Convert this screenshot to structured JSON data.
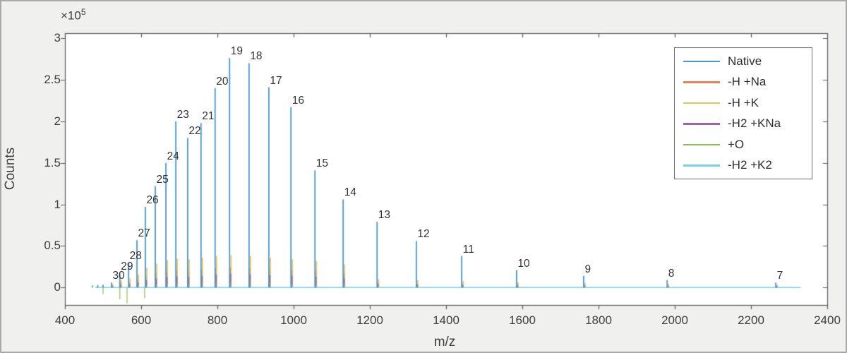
{
  "figure": {
    "background": "#f0f0ee",
    "border_color": "#a9a9a9",
    "plot_background": "#ffffff",
    "axis_color": "#5a5a5a",
    "text_color": "#3e3e3e"
  },
  "chart_data": {
    "type": "stem",
    "subtype": "native-mass-spectrum-charge-state-distribution",
    "title": "",
    "xlabel": "m/z",
    "ylabel": "Counts",
    "y_multiplier": "×10",
    "y_exponent": "5",
    "xlim": [
      400,
      2400
    ],
    "ylim": [
      -21000,
      306000
    ],
    "grid": false,
    "xticks": {
      "values": [
        400,
        600,
        800,
        1000,
        1200,
        1400,
        1600,
        1800,
        2000,
        2200,
        2400
      ],
      "labels": [
        "400",
        "600",
        "800",
        "1000",
        "1200",
        "1400",
        "1600",
        "1800",
        "2000",
        "2200",
        "2400"
      ]
    },
    "yticks": {
      "values": [
        0,
        50000,
        100000,
        150000,
        200000,
        250000,
        300000
      ],
      "labels": [
        "0",
        "0.5",
        "1",
        "1.5",
        "2",
        "2.5",
        "3"
      ]
    },
    "legend": {
      "position": "top-right",
      "entries": [
        {
          "key": "native",
          "label": "Native",
          "color": "#4596d3"
        },
        {
          "key": "na",
          "label": "-H +Na",
          "color": "#e4825c"
        },
        {
          "key": "k",
          "label": "-H +K",
          "color": "#eec156"
        },
        {
          "key": "kna",
          "label": "-H2 +KNa",
          "color": "#a05fa8"
        },
        {
          "key": "o",
          "label": "+O",
          "color": "#8fbb55"
        },
        {
          "key": "k2",
          "label": "-H2 +K2",
          "color": "#79d0f2"
        }
      ]
    },
    "baseline": {
      "series_key": "k2",
      "from_mz": 480,
      "to_mz": 2330,
      "value": 0
    },
    "peaks": [
      {
        "label": "",
        "mz": 472,
        "native": 2500,
        "na": 0,
        "k": 0,
        "kna": 0,
        "o": 0,
        "k2": 0
      },
      {
        "label": "",
        "mz": 486,
        "native": 3000,
        "na": 0,
        "k": 0,
        "kna": 0,
        "o": 0,
        "k2": 0
      },
      {
        "label": "",
        "mz": 500,
        "native": 3500,
        "na": 0,
        "k": 0,
        "kna": 0,
        "o": 0,
        "k2": 0
      },
      {
        "label": "30",
        "mz": 522,
        "native": 6000,
        "na": 2800,
        "k": 4200,
        "kna": 1800,
        "o": 900,
        "k2": 400
      },
      {
        "label": "29",
        "mz": 544,
        "native": 17000,
        "na": 5500,
        "k": 8500,
        "kna": 3200,
        "o": 1400,
        "k2": 600
      },
      {
        "label": "28",
        "mz": 567,
        "native": 30000,
        "na": 7000,
        "k": 11000,
        "kna": 4200,
        "o": 1800,
        "k2": 800
      },
      {
        "label": "27",
        "mz": 589,
        "native": 57000,
        "na": 9500,
        "k": 16000,
        "kna": 6000,
        "o": 2400,
        "k2": 1000
      },
      {
        "label": "26",
        "mz": 611,
        "native": 97000,
        "na": 14000,
        "k": 24000,
        "kna": 9000,
        "o": 3400,
        "k2": 1300
      },
      {
        "label": "25",
        "mz": 637,
        "native": 122000,
        "na": 17000,
        "k": 29000,
        "kna": 11000,
        "o": 4200,
        "k2": 1600
      },
      {
        "label": "24",
        "mz": 665,
        "native": 150000,
        "na": 19000,
        "k": 33000,
        "kna": 12500,
        "o": 4800,
        "k2": 1800
      },
      {
        "label": "23",
        "mz": 691,
        "native": 200000,
        "na": 21000,
        "k": 35000,
        "kna": 13500,
        "o": 5200,
        "k2": 2000
      },
      {
        "label": "22",
        "mz": 722,
        "native": 180000,
        "na": 20000,
        "k": 34000,
        "kna": 13000,
        "o": 5200,
        "k2": 2000
      },
      {
        "label": "21",
        "mz": 757,
        "native": 198000,
        "na": 21500,
        "k": 36000,
        "kna": 14000,
        "o": 5600,
        "k2": 2100
      },
      {
        "label": "20",
        "mz": 794,
        "native": 240000,
        "na": 23000,
        "k": 38000,
        "kna": 15500,
        "o": 6000,
        "k2": 2200
      },
      {
        "label": "19",
        "mz": 832,
        "native": 276000,
        "na": 24000,
        "k": 39000,
        "kna": 16500,
        "o": 6400,
        "k2": 2400
      },
      {
        "label": "18",
        "mz": 883,
        "native": 270000,
        "na": 23500,
        "k": 38000,
        "kna": 16000,
        "o": 6400,
        "k2": 2400
      },
      {
        "label": "17",
        "mz": 935,
        "native": 241000,
        "na": 22500,
        "k": 36000,
        "kna": 15000,
        "o": 6000,
        "k2": 2200
      },
      {
        "label": "16",
        "mz": 993,
        "native": 217000,
        "na": 21500,
        "k": 34000,
        "kna": 14000,
        "o": 5600,
        "k2": 2000
      },
      {
        "label": "15",
        "mz": 1056,
        "native": 141000,
        "na": 20000,
        "k": 32000,
        "kna": 13000,
        "o": 5200,
        "k2": 1900
      },
      {
        "label": "14",
        "mz": 1130,
        "native": 106000,
        "na": 17500,
        "k": 28000,
        "kna": 11000,
        "o": 4400,
        "k2": 1600
      },
      {
        "label": "13",
        "mz": 1219,
        "native": 79000,
        "na": 6000,
        "k": 10000,
        "kna": 4000,
        "o": 1800,
        "k2": 800
      },
      {
        "label": "12",
        "mz": 1322,
        "native": 56000,
        "na": 5200,
        "k": 9000,
        "kna": 3600,
        "o": 1600,
        "k2": 700
      },
      {
        "label": "11",
        "mz": 1441,
        "native": 38000,
        "na": 4600,
        "k": 8000,
        "kna": 3200,
        "o": 1400,
        "k2": 600
      },
      {
        "label": "10",
        "mz": 1585,
        "native": 21000,
        "na": 3800,
        "k": 6500,
        "kna": 2600,
        "o": 1200,
        "k2": 500
      },
      {
        "label": "9",
        "mz": 1761,
        "native": 14000,
        "na": 3200,
        "k": 5500,
        "kna": 2200,
        "o": 1000,
        "k2": 450
      },
      {
        "label": "8",
        "mz": 1980,
        "native": 9000,
        "na": 2600,
        "k": 4500,
        "kna": 1800,
        "o": 800,
        "k2": 350
      },
      {
        "label": "7",
        "mz": 2265,
        "native": 6000,
        "na": 2200,
        "k": 3500,
        "kna": 1500,
        "o": 700,
        "k2": 300
      }
    ],
    "negative_spikes": [
      {
        "series_key": "o",
        "mz": 500,
        "value": -8000
      },
      {
        "series_key": "o",
        "mz": 544,
        "value": -14000
      },
      {
        "series_key": "o",
        "mz": 563,
        "value": -19000
      },
      {
        "series_key": "o",
        "mz": 609,
        "value": -13000
      }
    ]
  }
}
